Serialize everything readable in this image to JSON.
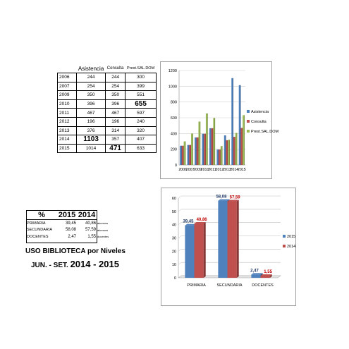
{
  "table1": {
    "headers": [
      "",
      "Asistencia",
      "Consulta",
      "Prest.SAL.DOM"
    ],
    "rows": [
      [
        "2006",
        "244",
        "244",
        "300"
      ],
      [
        "2007",
        "254",
        "254",
        "399"
      ],
      [
        "2009",
        "350",
        "350",
        "551"
      ],
      [
        "2010",
        "396",
        "396",
        "655"
      ],
      [
        "2011",
        "467",
        "467",
        "597"
      ],
      [
        "2012",
        "196",
        "196",
        "240"
      ],
      [
        "2013",
        "376",
        "314",
        "320"
      ],
      [
        "2014",
        "1103",
        "357",
        "407"
      ],
      [
        "2015",
        "1014",
        "471",
        "633"
      ]
    ]
  },
  "table2": {
    "headers": [
      "%",
      "2015",
      "2014"
    ],
    "rows": [
      [
        "PRIMARIA",
        "39,45",
        "40,86",
        "alumnos"
      ],
      [
        "SECUNDARIA",
        "58,08",
        "57,59",
        "alumnos"
      ],
      [
        "DOCENTES",
        "2,47",
        "1,55",
        "docentes"
      ]
    ]
  },
  "caption": {
    "line1": "USO BIBLIOTECA por Niveles",
    "line2_prefix": "JUN. - SET.",
    "line2_years": "2014 - 2015"
  },
  "chart_data": [
    {
      "type": "bar",
      "categories": [
        "2006",
        "2007",
        "2009",
        "2010",
        "2011",
        "2012",
        "2013",
        "2014",
        "2015"
      ],
      "series": [
        {
          "name": "Asistencia",
          "values": [
            244,
            254,
            350,
            396,
            467,
            196,
            376,
            1103,
            1014
          ],
          "color": "#4f81bd"
        },
        {
          "name": "Consulta",
          "values": [
            244,
            254,
            350,
            396,
            467,
            196,
            314,
            357,
            471
          ],
          "color": "#c0504d"
        },
        {
          "name": "Prest.SAL.DOM",
          "values": [
            300,
            399,
            551,
            655,
            597,
            240,
            320,
            407,
            633
          ],
          "color": "#9bbb59"
        }
      ],
      "ylim": [
        0,
        1200
      ],
      "yticks": [
        "0",
        "200",
        "400",
        "600",
        "800",
        "1000",
        "1200"
      ],
      "grid": true,
      "legend": "right"
    },
    {
      "type": "bar",
      "categories": [
        "PRIMARIA",
        "SECUNDARIA",
        "DOCENTES"
      ],
      "series": [
        {
          "name": "2015",
          "values": [
            39.45,
            58.08,
            2.47
          ],
          "labels": [
            "39,45",
            "58,08",
            "2,47"
          ],
          "color": "#4f81bd",
          "label_color": "#1f3864"
        },
        {
          "name": "2014",
          "values": [
            40.86,
            57.59,
            1.55
          ],
          "labels": [
            "40,86",
            "57,59",
            "1,55"
          ],
          "color": "#c0504d",
          "label_color": "#c00000"
        }
      ],
      "ylim": [
        0,
        60
      ],
      "yticks": [
        "0",
        "10",
        "20",
        "30",
        "40",
        "50",
        "60"
      ],
      "grid": true,
      "legend": "right"
    }
  ]
}
